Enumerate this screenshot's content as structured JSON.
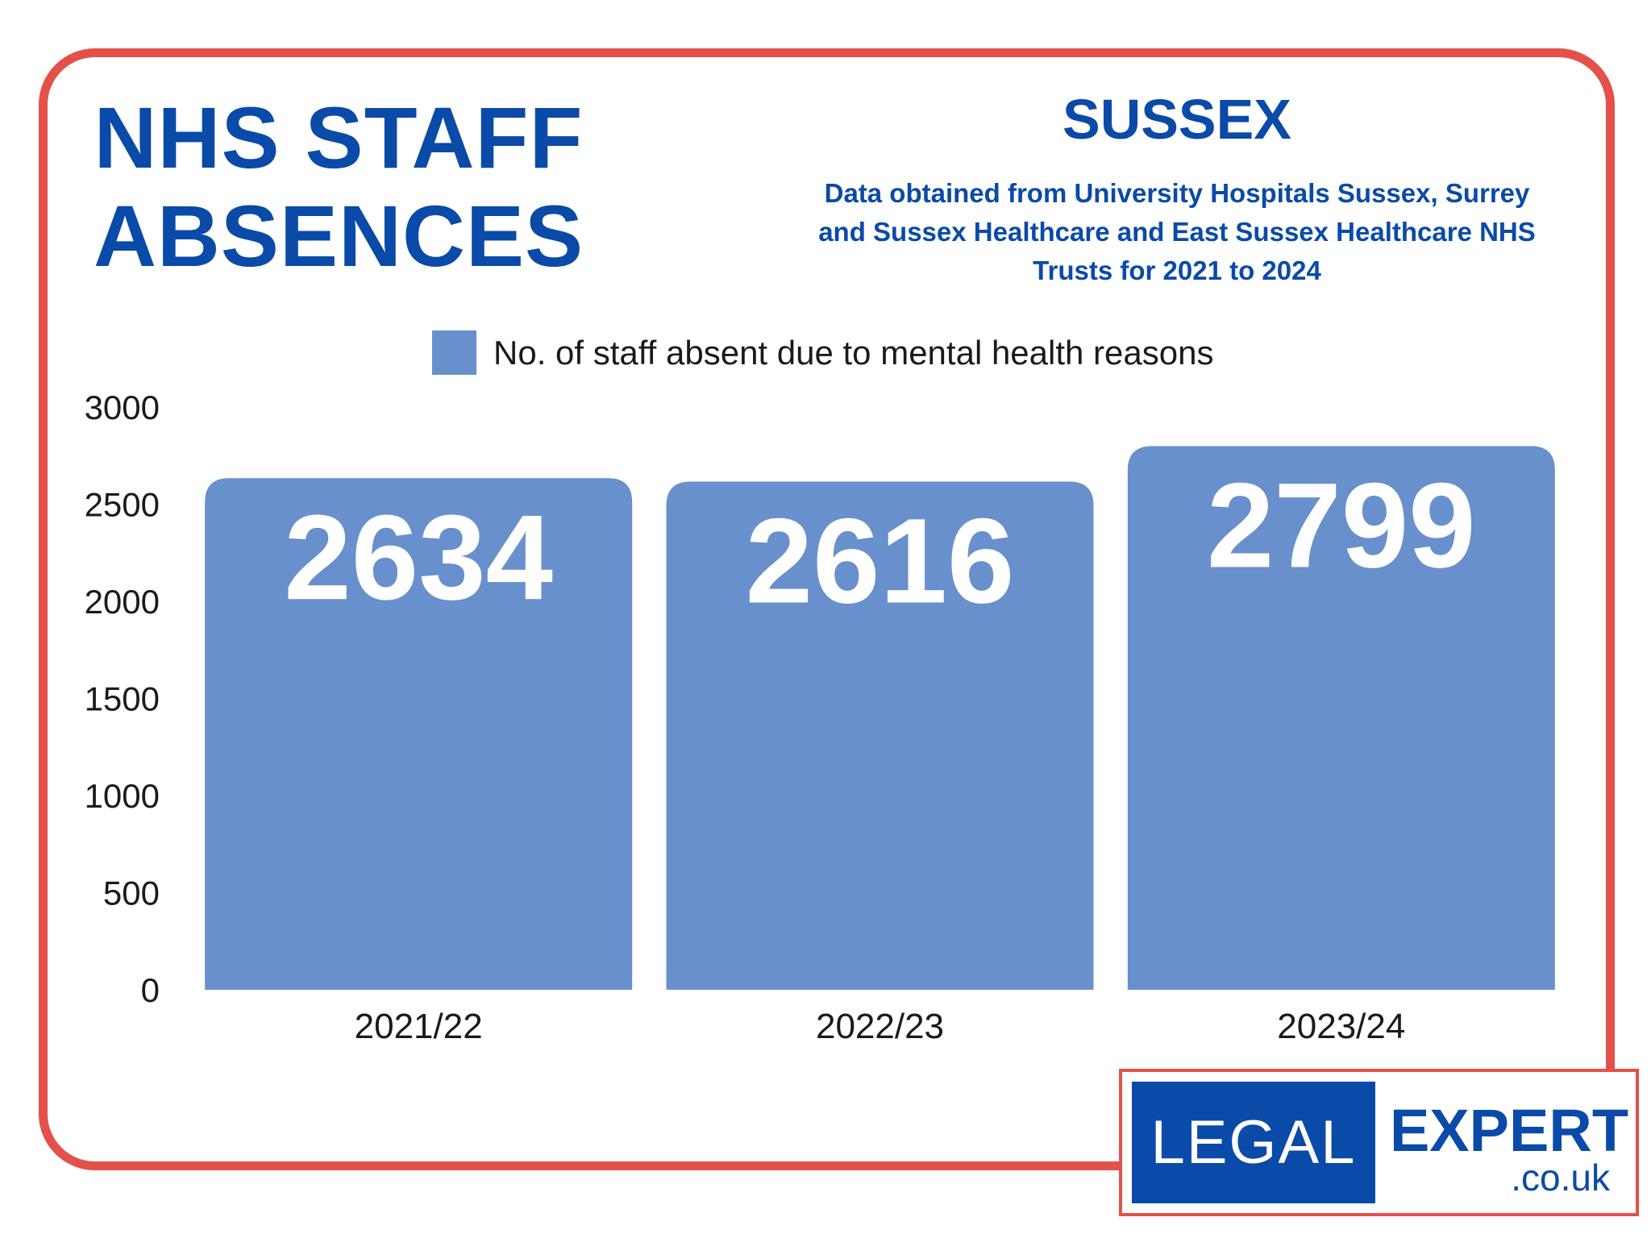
{
  "header": {
    "title_line1": "NHS STAFF",
    "title_line2": "ABSENCES",
    "region": "SUSSEX",
    "subtitle_line1": "Data obtained from University Hospitals Sussex, Surrey",
    "subtitle_line2": "and Sussex Healthcare and East Sussex Healthcare NHS",
    "subtitle_line3": "Trusts for 2021 to 2024"
  },
  "chart_data": {
    "type": "bar",
    "title": "NHS STAFF ABSENCES",
    "categories": [
      "2021/22",
      "2022/23",
      "2023/24"
    ],
    "series": [
      {
        "name": "No. of staff absent due to mental health reasons",
        "values": [
          2634,
          2616,
          2799
        ]
      }
    ],
    "data_labels": [
      "2634",
      "2616",
      "2799"
    ],
    "yticks": [
      "0",
      "500",
      "1000",
      "1500",
      "2000",
      "2500",
      "3000"
    ],
    "ylim": [
      0,
      3000
    ],
    "xlabel": "",
    "ylabel": "",
    "grid": false,
    "legend_position": "top",
    "bar_color": "#6890cc"
  },
  "logo": {
    "left_text": "LEGAL",
    "right_text": "EXPERT",
    "domain_text": ".co.uk"
  },
  "colors": {
    "frame": "#e4504a",
    "title": "#0a4aa8",
    "bar": "#6890cc"
  }
}
